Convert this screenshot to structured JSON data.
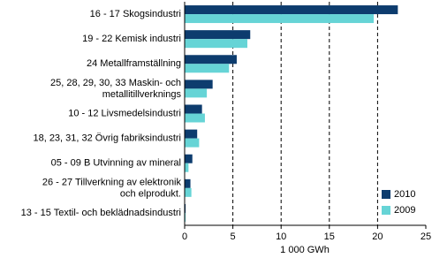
{
  "chart_data": {
    "type": "barh",
    "categories": [
      "16 - 17 Skogsindustri",
      "19 - 22 Kemisk industri",
      "24 Metallframställning",
      "25, 28, 29, 30, 33 Maskin- och\nmetallitillverknings",
      "10 - 12 Livsmedelsindustri",
      "18, 23, 31, 32 Övrig fabriksindustri",
      "05 - 09 B Utvinning av mineral",
      "26 - 27 Tillverkning av elektronik\noch elprodukt.",
      "13 - 15 Textil- och beklädnadsindustri"
    ],
    "series": [
      {
        "name": "2010",
        "color": "#0d3c6e",
        "values": [
          22.1,
          6.8,
          5.4,
          2.9,
          1.8,
          1.3,
          0.8,
          0.6,
          0.1
        ]
      },
      {
        "name": "2009",
        "color": "#66d4d6",
        "values": [
          19.6,
          6.5,
          4.6,
          2.3,
          2.1,
          1.5,
          0.4,
          0.7,
          0.1
        ]
      }
    ],
    "xlim": [
      0,
      25
    ],
    "xticks": [
      0,
      5,
      10,
      15,
      20,
      25
    ],
    "grid": true,
    "x_label": "1 000 GWh",
    "legend": "lower-right"
  }
}
